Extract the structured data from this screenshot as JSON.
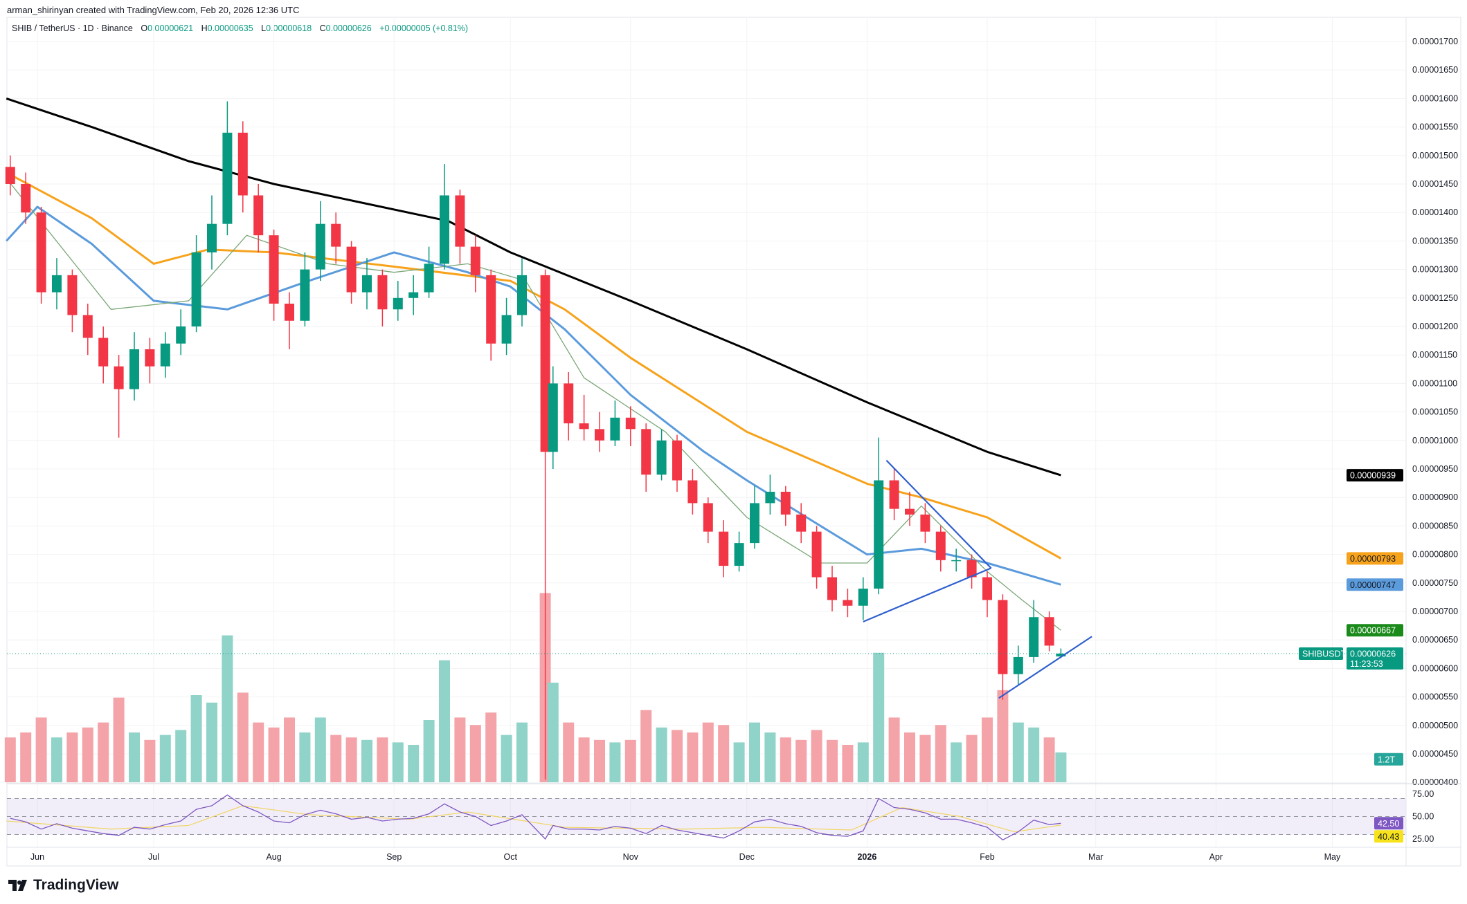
{
  "credit": "arman_shirinyan created with TradingView.com, Feb 20, 2026 12:36 UTC",
  "legend": {
    "symbol": "SHIB / TetherUS · 1D · Binance",
    "o_label": "O",
    "o": "0.00000621",
    "h_label": "H",
    "h": "0.00000635",
    "l_label": "L",
    "l": "0.00000618",
    "c_label": "C",
    "c": "0.00000626",
    "change": "+0.00000005 (+0.81%)"
  },
  "logo": "TradingView",
  "colors": {
    "up": "#089981",
    "down": "#f23645",
    "vol_up": "#8fd3c9",
    "vol_down": "#f4a3a8",
    "ma_black": "#000000",
    "ma_orange": "#f7a21b",
    "ma_blue": "#5b9bdc",
    "ma_green": "#7aa777",
    "rsi": "#7e57c2",
    "rsi_ma": "#f0d66a",
    "trendline": "#2f5fcf"
  },
  "chart_data": {
    "type": "candlestick",
    "symbol": "SHIBUSDT",
    "ylim": [
      4e-06,
      1.7e-05
    ],
    "price_ticks": [
      "0.00001700",
      "0.00001650",
      "0.00001600",
      "0.00001550",
      "0.00001500",
      "0.00001450",
      "0.00001400",
      "0.00001350",
      "0.00001300",
      "0.00001250",
      "0.00001200",
      "0.00001150",
      "0.00001100",
      "0.00001050",
      "0.00001000",
      "0.00000950",
      "0.00000900",
      "0.00000850",
      "0.00000800",
      "0.00000750",
      "0.00000700",
      "0.00000650",
      "0.00000600",
      "0.00000550",
      "0.00000500",
      "0.00000450",
      "0.00000400"
    ],
    "time_ticks": [
      {
        "label": "Jun",
        "date": "2025-06-01"
      },
      {
        "label": "Jul",
        "date": "2025-07-01"
      },
      {
        "label": "Aug",
        "date": "2025-08-01"
      },
      {
        "label": "Sep",
        "date": "2025-09-01"
      },
      {
        "label": "Oct",
        "date": "2025-10-01"
      },
      {
        "label": "Nov",
        "date": "2025-11-01"
      },
      {
        "label": "Dec",
        "date": "2025-12-01"
      },
      {
        "label": "2026",
        "date": "2026-01-01",
        "bold": true
      },
      {
        "label": "Feb",
        "date": "2026-02-01"
      },
      {
        "label": "Mar",
        "date": "2026-03-01"
      },
      {
        "label": "Apr",
        "date": "2026-04-01"
      },
      {
        "label": "May",
        "date": "2026-05-01"
      }
    ],
    "candle_columns": [
      "date",
      "open",
      "high",
      "low",
      "close",
      "volume_T",
      "rsi"
    ],
    "candles": [
      [
        "2025-05-25",
        1.48e-05,
        1.5e-05,
        1.43e-05,
        1.45e-05,
        1.8,
        48
      ],
      [
        "2025-05-29",
        1.45e-05,
        1.47e-05,
        1.38e-05,
        1.4e-05,
        2.0,
        44
      ],
      [
        "2025-06-02",
        1.4e-05,
        1.41e-05,
        1.24e-05,
        1.26e-05,
        2.6,
        36
      ],
      [
        "2025-06-06",
        1.26e-05,
        1.32e-05,
        1.23e-05,
        1.29e-05,
        1.8,
        42
      ],
      [
        "2025-06-10",
        1.29e-05,
        1.3e-05,
        1.19e-05,
        1.22e-05,
        2.0,
        37
      ],
      [
        "2025-06-14",
        1.22e-05,
        1.24e-05,
        1.15e-05,
        1.18e-05,
        2.2,
        34
      ],
      [
        "2025-06-18",
        1.18e-05,
        1.2e-05,
        1.1e-05,
        1.13e-05,
        2.4,
        31
      ],
      [
        "2025-06-22",
        1.13e-05,
        1.15e-05,
        1.005e-05,
        1.09e-05,
        3.4,
        29
      ],
      [
        "2025-06-26",
        1.09e-05,
        1.19e-05,
        1.07e-05,
        1.16e-05,
        2.0,
        38
      ],
      [
        "2025-06-30",
        1.16e-05,
        1.18e-05,
        1.1e-05,
        1.13e-05,
        1.7,
        36
      ],
      [
        "2025-07-04",
        1.13e-05,
        1.19e-05,
        1.11e-05,
        1.17e-05,
        1.9,
        41
      ],
      [
        "2025-07-08",
        1.17e-05,
        1.23e-05,
        1.15e-05,
        1.2e-05,
        2.1,
        45
      ],
      [
        "2025-07-12",
        1.2e-05,
        1.36e-05,
        1.19e-05,
        1.33e-05,
        3.5,
        58
      ],
      [
        "2025-07-16",
        1.33e-05,
        1.43e-05,
        1.3e-05,
        1.38e-05,
        3.2,
        62
      ],
      [
        "2025-07-20",
        1.38e-05,
        1.595e-05,
        1.36e-05,
        1.54e-05,
        5.9,
        74
      ],
      [
        "2025-07-24",
        1.54e-05,
        1.56e-05,
        1.4e-05,
        1.43e-05,
        3.6,
        62
      ],
      [
        "2025-07-28",
        1.43e-05,
        1.45e-05,
        1.33e-05,
        1.36e-05,
        2.4,
        55
      ],
      [
        "2025-08-01",
        1.36e-05,
        1.37e-05,
        1.21e-05,
        1.24e-05,
        2.2,
        45
      ],
      [
        "2025-08-05",
        1.24e-05,
        1.26e-05,
        1.16e-05,
        1.21e-05,
        2.6,
        43
      ],
      [
        "2025-08-09",
        1.21e-05,
        1.33e-05,
        1.2e-05,
        1.3e-05,
        2.0,
        52
      ],
      [
        "2025-08-13",
        1.3e-05,
        1.42e-05,
        1.28e-05,
        1.38e-05,
        2.6,
        57
      ],
      [
        "2025-08-17",
        1.38e-05,
        1.4e-05,
        1.31e-05,
        1.34e-05,
        1.9,
        53
      ],
      [
        "2025-08-21",
        1.34e-05,
        1.35e-05,
        1.24e-05,
        1.26e-05,
        1.8,
        47
      ],
      [
        "2025-08-25",
        1.26e-05,
        1.32e-05,
        1.23e-05,
        1.29e-05,
        1.7,
        49
      ],
      [
        "2025-08-29",
        1.29e-05,
        1.3e-05,
        1.2e-05,
        1.23e-05,
        1.8,
        45
      ],
      [
        "2025-09-02",
        1.23e-05,
        1.28e-05,
        1.21e-05,
        1.25e-05,
        1.6,
        47
      ],
      [
        "2025-09-06",
        1.25e-05,
        1.29e-05,
        1.22e-05,
        1.26e-05,
        1.5,
        48
      ],
      [
        "2025-09-10",
        1.26e-05,
        1.34e-05,
        1.25e-05,
        1.31e-05,
        2.5,
        53
      ],
      [
        "2025-09-14",
        1.31e-05,
        1.485e-05,
        1.3e-05,
        1.43e-05,
        4.9,
        64
      ],
      [
        "2025-09-18",
        1.43e-05,
        1.44e-05,
        1.31e-05,
        1.34e-05,
        2.6,
        55
      ],
      [
        "2025-09-22",
        1.34e-05,
        1.36e-05,
        1.26e-05,
        1.29e-05,
        2.3,
        50
      ],
      [
        "2025-09-26",
        1.29e-05,
        1.3e-05,
        1.14e-05,
        1.17e-05,
        2.8,
        40
      ],
      [
        "2025-09-30",
        1.17e-05,
        1.25e-05,
        1.15e-05,
        1.22e-05,
        1.9,
        45
      ],
      [
        "2025-10-04",
        1.22e-05,
        1.32e-05,
        1.2e-05,
        1.29e-05,
        2.4,
        52
      ],
      [
        "2025-10-10",
        1.29e-05,
        1.3e-05,
        4.05e-06,
        9.8e-06,
        7.6,
        25
      ],
      [
        "2025-10-12",
        9.8e-06,
        1.13e-05,
        9.5e-06,
        1.1e-05,
        4.0,
        40
      ],
      [
        "2025-10-16",
        1.1e-05,
        1.12e-05,
        1e-05,
        1.03e-05,
        2.4,
        36
      ],
      [
        "2025-10-20",
        1.03e-05,
        1.08e-05,
        1e-05,
        1.02e-05,
        1.8,
        36
      ],
      [
        "2025-10-24",
        1.02e-05,
        1.05e-05,
        9.8e-06,
        1e-05,
        1.7,
        35
      ],
      [
        "2025-10-28",
        1e-05,
        1.07e-05,
        9.9e-06,
        1.04e-05,
        1.6,
        39
      ],
      [
        "2025-11-01",
        1.04e-05,
        1.06e-05,
        9.9e-06,
        1.02e-05,
        1.7,
        37
      ],
      [
        "2025-11-05",
        1.02e-05,
        1.03e-05,
        9.1e-06,
        9.4e-06,
        2.9,
        31
      ],
      [
        "2025-11-09",
        9.4e-06,
        1.02e-05,
        9.3e-06,
        1e-05,
        2.2,
        40
      ],
      [
        "2025-11-13",
        1e-05,
        1.01e-05,
        9.1e-06,
        9.3e-06,
        2.1,
        35
      ],
      [
        "2025-11-17",
        9.3e-06,
        9.5e-06,
        8.7e-06,
        8.9e-06,
        2.0,
        32
      ],
      [
        "2025-11-21",
        8.9e-06,
        9e-06,
        8.2e-06,
        8.4e-06,
        2.4,
        29
      ],
      [
        "2025-11-25",
        8.4e-06,
        8.6e-06,
        7.6e-06,
        7.8e-06,
        2.3,
        26
      ],
      [
        "2025-11-29",
        7.8e-06,
        8.4e-06,
        7.7e-06,
        8.2e-06,
        1.6,
        34
      ],
      [
        "2025-12-03",
        8.2e-06,
        9.2e-06,
        8.1e-06,
        8.9e-06,
        2.4,
        44
      ],
      [
        "2025-12-07",
        8.9e-06,
        9.4e-06,
        8.7e-06,
        9.1e-06,
        2.0,
        47
      ],
      [
        "2025-12-11",
        9.1e-06,
        9.2e-06,
        8.5e-06,
        8.7e-06,
        1.8,
        42
      ],
      [
        "2025-12-15",
        8.7e-06,
        8.9e-06,
        8.2e-06,
        8.4e-06,
        1.7,
        39
      ],
      [
        "2025-12-19",
        8.4e-06,
        8.5e-06,
        7.4e-06,
        7.6e-06,
        2.1,
        32
      ],
      [
        "2025-12-23",
        7.6e-06,
        7.8e-06,
        7e-06,
        7.2e-06,
        1.7,
        29
      ],
      [
        "2025-12-27",
        7.2e-06,
        7.4e-06,
        6.9e-06,
        7.1e-06,
        1.5,
        28
      ],
      [
        "2025-12-31",
        7.1e-06,
        7.6e-06,
        6.85e-06,
        7.4e-06,
        1.6,
        34
      ],
      [
        "2026-01-04",
        7.4e-06,
        1.005e-05,
        7.3e-06,
        9.3e-06,
        5.2,
        70
      ],
      [
        "2026-01-08",
        9.3e-06,
        9.5e-06,
        8.6e-06,
        8.8e-06,
        2.6,
        60
      ],
      [
        "2026-01-12",
        8.8e-06,
        9.1e-06,
        8.5e-06,
        8.7e-06,
        2.0,
        58
      ],
      [
        "2026-01-16",
        8.7e-06,
        8.9e-06,
        8.2e-06,
        8.4e-06,
        1.9,
        54
      ],
      [
        "2026-01-20",
        8.4e-06,
        8.5e-06,
        7.7e-06,
        7.9e-06,
        2.3,
        47
      ],
      [
        "2026-01-24",
        7.9e-06,
        8.1e-06,
        7.7e-06,
        7.9e-06,
        1.6,
        47
      ],
      [
        "2026-01-28",
        7.9e-06,
        8e-06,
        7.4e-06,
        7.6e-06,
        1.9,
        43
      ],
      [
        "2026-02-01",
        7.6e-06,
        7.7e-06,
        6.9e-06,
        7.2e-06,
        2.6,
        38
      ],
      [
        "2026-02-05",
        7.2e-06,
        7.3e-06,
        5.45e-06,
        5.9e-06,
        3.7,
        24
      ],
      [
        "2026-02-09",
        5.9e-06,
        6.4e-06,
        5.7e-06,
        6.2e-06,
        2.4,
        33
      ],
      [
        "2026-02-13",
        6.2e-06,
        7.2e-06,
        6.1e-06,
        6.9e-06,
        2.2,
        46
      ],
      [
        "2026-02-17",
        6.9e-06,
        7e-06,
        6.3e-06,
        6.4e-06,
        1.8,
        41
      ],
      [
        "2026-02-20",
        6.21e-06,
        6.35e-06,
        6.18e-06,
        6.26e-06,
        1.2,
        42.5
      ]
    ],
    "moving_averages": [
      {
        "color": "ma_black",
        "last": "0.00000939",
        "points": [
          [
            "2025-05-24",
            1.6e-05
          ],
          [
            "2025-06-15",
            1.55e-05
          ],
          [
            "2025-07-10",
            1.49e-05
          ],
          [
            "2025-08-01",
            1.45e-05
          ],
          [
            "2025-09-15",
            1.385e-05
          ],
          [
            "2025-10-01",
            1.33e-05
          ],
          [
            "2025-11-01",
            1.245e-05
          ],
          [
            "2025-12-01",
            1.16e-05
          ],
          [
            "2026-01-01",
            1.067e-05
          ],
          [
            "2026-02-01",
            9.8e-06
          ],
          [
            "2026-02-20",
            9.39e-06
          ]
        ]
      },
      {
        "color": "ma_orange",
        "last": "0.00000793",
        "points": [
          [
            "2025-05-24",
            1.47e-05
          ],
          [
            "2025-06-15",
            1.39e-05
          ],
          [
            "2025-07-01",
            1.31e-05
          ],
          [
            "2025-07-15",
            1.335e-05
          ],
          [
            "2025-08-01",
            1.33e-05
          ],
          [
            "2025-09-01",
            1.305e-05
          ],
          [
            "2025-10-01",
            1.28e-05
          ],
          [
            "2025-10-15",
            1.23e-05
          ],
          [
            "2025-11-01",
            1.145e-05
          ],
          [
            "2025-12-01",
            1.015e-05
          ],
          [
            "2026-01-01",
            9.24e-06
          ],
          [
            "2026-01-15",
            9e-06
          ],
          [
            "2026-02-01",
            8.65e-06
          ],
          [
            "2026-02-20",
            7.93e-06
          ]
        ]
      },
      {
        "color": "ma_blue",
        "last": "0.00000747",
        "points": [
          [
            "2025-05-24",
            1.35e-05
          ],
          [
            "2025-06-01",
            1.41e-05
          ],
          [
            "2025-06-15",
            1.345e-05
          ],
          [
            "2025-07-01",
            1.245e-05
          ],
          [
            "2025-07-20",
            1.23e-05
          ],
          [
            "2025-08-10",
            1.28e-05
          ],
          [
            "2025-09-01",
            1.33e-05
          ],
          [
            "2025-09-20",
            1.295e-05
          ],
          [
            "2025-10-01",
            1.27e-05
          ],
          [
            "2025-10-15",
            1.195e-05
          ],
          [
            "2025-11-01",
            1.08e-05
          ],
          [
            "2025-11-20",
            9.8e-06
          ],
          [
            "2025-12-01",
            9.3e-06
          ],
          [
            "2025-12-20",
            8.5e-06
          ],
          [
            "2026-01-01",
            8e-06
          ],
          [
            "2026-01-15",
            8.1e-06
          ],
          [
            "2026-02-01",
            7.85e-06
          ],
          [
            "2026-02-20",
            7.47e-06
          ]
        ]
      },
      {
        "color": "ma_green",
        "last": "0.00000667",
        "points": [
          [
            "2025-05-24",
            1.46e-05
          ],
          [
            "2025-06-20",
            1.23e-05
          ],
          [
            "2025-07-10",
            1.245e-05
          ],
          [
            "2025-07-25",
            1.36e-05
          ],
          [
            "2025-08-15",
            1.31e-05
          ],
          [
            "2025-09-01",
            1.295e-05
          ],
          [
            "2025-09-20",
            1.31e-05
          ],
          [
            "2025-10-05",
            1.28e-05
          ],
          [
            "2025-10-20",
            1.11e-05
          ],
          [
            "2025-11-10",
            1.015e-05
          ],
          [
            "2025-12-01",
            8.65e-06
          ],
          [
            "2025-12-20",
            7.85e-06
          ],
          [
            "2026-01-01",
            7.85e-06
          ],
          [
            "2026-01-15",
            8.85e-06
          ],
          [
            "2026-02-01",
            7.7e-06
          ],
          [
            "2026-02-10",
            7.2e-06
          ],
          [
            "2026-02-20",
            6.67e-06
          ]
        ]
      }
    ],
    "trendlines": [
      [
        [
          "2026-01-06",
          9.65e-06
        ],
        [
          "2026-02-02",
          7.76e-06
        ]
      ],
      [
        [
          "2025-12-31",
          6.82e-06
        ],
        [
          "2026-02-02",
          7.76e-06
        ]
      ],
      [
        [
          "2026-02-04",
          5.48e-06
        ],
        [
          "2026-02-28",
          6.56e-06
        ]
      ]
    ],
    "last_price": {
      "symbol_label": "SHIBUSDT",
      "value": 6.26e-06,
      "label": "0.00000626",
      "countdown": "11:23:53"
    },
    "volume_last_label": "1.2T",
    "rsi": {
      "ticks": [
        "75.00",
        "50.00",
        "25.00"
      ],
      "band": [
        30,
        70
      ],
      "last": "42.50",
      "ma_last": "40.43",
      "ma_points": [
        [
          "2025-05-24",
          45
        ],
        [
          "2025-06-20",
          36
        ],
        [
          "2025-07-10",
          40
        ],
        [
          "2025-07-24",
          62
        ],
        [
          "2025-08-10",
          52
        ],
        [
          "2025-09-05",
          47
        ],
        [
          "2025-09-20",
          55
        ],
        [
          "2025-10-15",
          38
        ],
        [
          "2025-11-15",
          36
        ],
        [
          "2025-12-05",
          38
        ],
        [
          "2025-12-28",
          35
        ],
        [
          "2026-01-10",
          60
        ],
        [
          "2026-01-25",
          50
        ],
        [
          "2026-02-08",
          33
        ],
        [
          "2026-02-20",
          40.43
        ]
      ]
    }
  }
}
